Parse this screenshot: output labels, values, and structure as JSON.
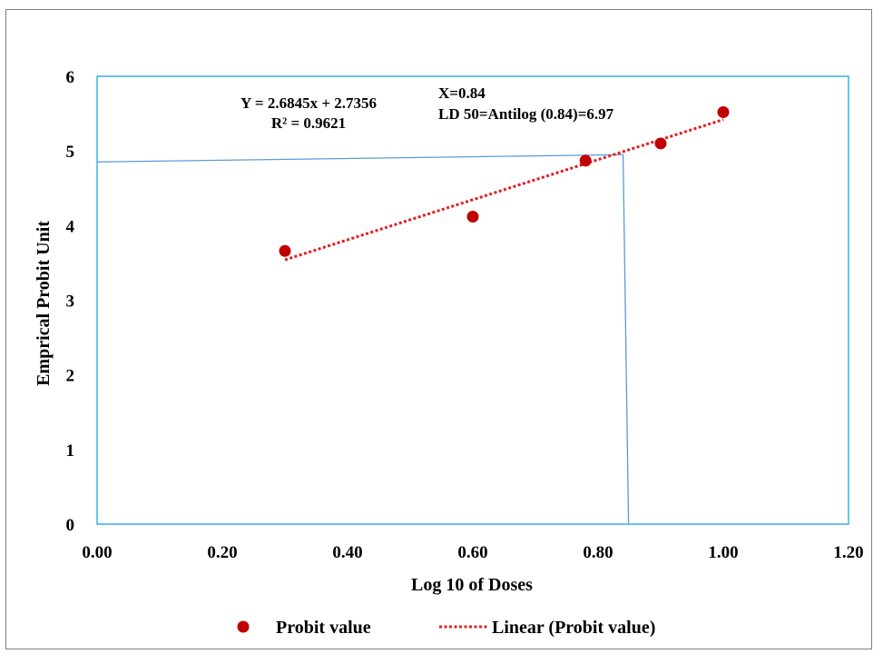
{
  "chart_data": {
    "type": "scatter",
    "xlabel": "Log 10  of Doses",
    "ylabel": "Emprical Probit Unit",
    "xlim": [
      0,
      1.2
    ],
    "ylim": [
      0,
      6
    ],
    "x_ticks": [
      "0.00",
      "0.20",
      "0.40",
      "0.60",
      "0.80",
      "1.00",
      "1.20"
    ],
    "y_ticks": [
      "0",
      "1",
      "2",
      "3",
      "4",
      "5",
      "6"
    ],
    "grid": false,
    "legend_position": "bottom",
    "series": [
      {
        "name": "Probit value",
        "marker": "circle",
        "color": "#c00000",
        "points": [
          {
            "x": 0.3,
            "y": 3.66
          },
          {
            "x": 0.6,
            "y": 4.12
          },
          {
            "x": 0.78,
            "y": 4.87
          },
          {
            "x": 0.9,
            "y": 5.1
          },
          {
            "x": 1.0,
            "y": 5.52
          }
        ]
      }
    ],
    "trendline": {
      "name": "Linear (Probit value)",
      "style": "dotted",
      "color": "#e02020",
      "slope": 2.6845,
      "intercept": 2.7356,
      "x_range": [
        0.3,
        1.0
      ]
    },
    "reference_lines": {
      "color": "#5b9bd5",
      "x": 0.84,
      "y": 4.95
    },
    "annotations": {
      "equation": "Y = 2.6845x + 2.7356",
      "r_squared": "R² = 0.9621",
      "x_value": "X=0.84",
      "ld50": "LD 50=Antilog (0.84)=6.97"
    },
    "plot_border_color": "#33b4e6"
  }
}
